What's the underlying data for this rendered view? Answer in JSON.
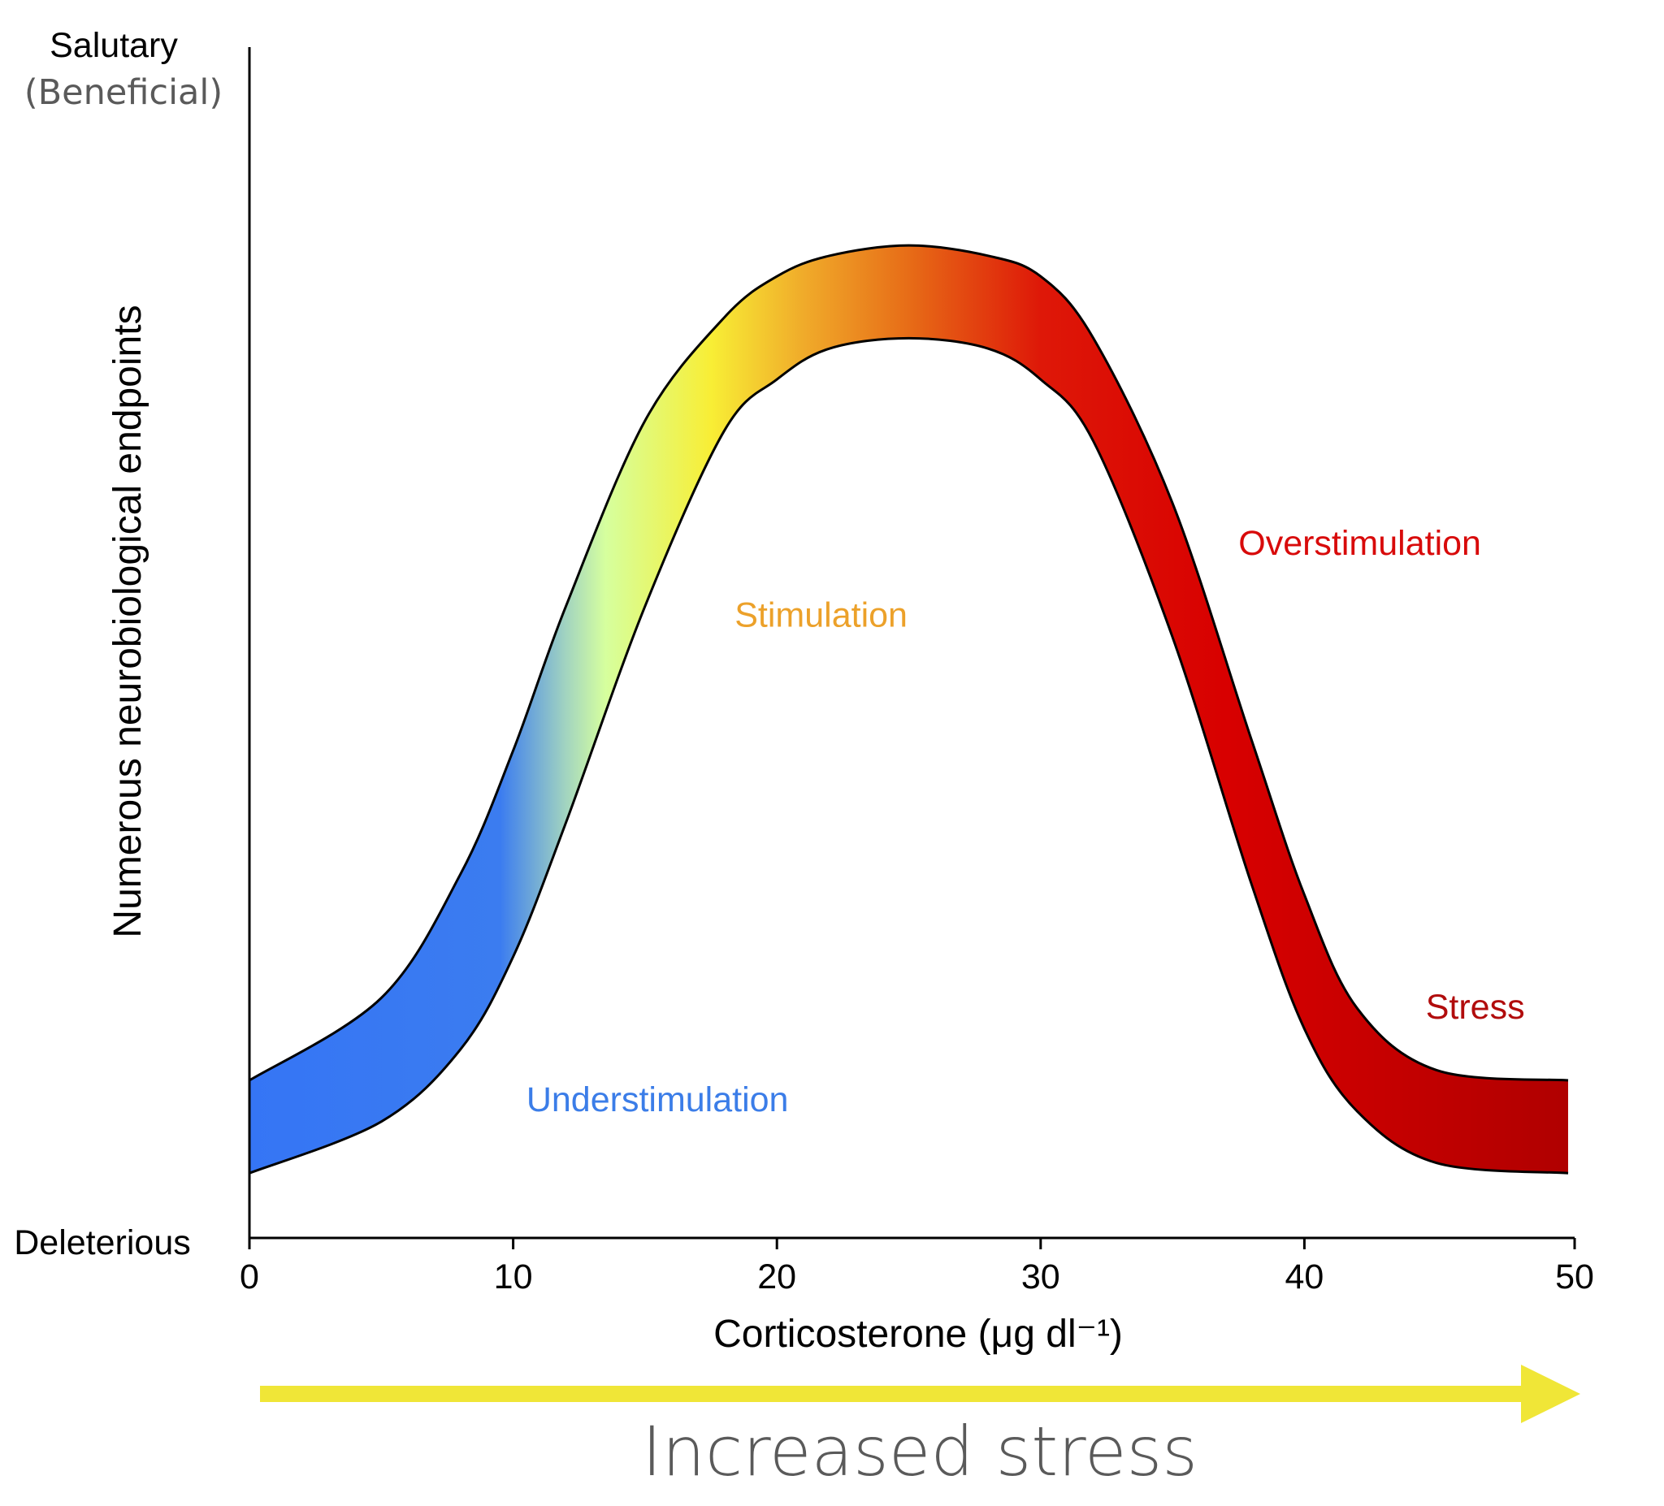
{
  "chart_data": {
    "type": "area",
    "title": "",
    "xlabel": "Corticosterone (μg dl⁻¹)",
    "xlim": [
      0,
      50
    ],
    "x_ticks": [
      0,
      10,
      20,
      30,
      40,
      50
    ],
    "y_axis": {
      "label": "Numerous neurobiological endpoints",
      "top_label": "Salutary",
      "top_sublabel": "(Beneficial)",
      "bottom_label": "Deleterious",
      "ticks_shown": false
    },
    "band": {
      "x": [
        0,
        5,
        8,
        10,
        12,
        15,
        18,
        20,
        22,
        25,
        28,
        30,
        32,
        35,
        38,
        40,
        42,
        45,
        50
      ],
      "upper": [
        0.13,
        0.21,
        0.33,
        0.45,
        0.59,
        0.77,
        0.87,
        0.91,
        0.93,
        0.94,
        0.93,
        0.91,
        0.85,
        0.69,
        0.46,
        0.31,
        0.2,
        0.14,
        0.13
      ],
      "lower": [
        0.04,
        0.09,
        0.16,
        0.25,
        0.38,
        0.59,
        0.76,
        0.81,
        0.84,
        0.85,
        0.84,
        0.81,
        0.75,
        0.56,
        0.32,
        0.18,
        0.1,
        0.05,
        0.04
      ],
      "gradient_stops": [
        {
          "x": 0,
          "color": "#3575f5"
        },
        {
          "x": 9.5,
          "color": "#3b7cf0"
        },
        {
          "x": 12,
          "color": "#a2d4c0"
        },
        {
          "x": 13.5,
          "color": "#d6ff9e"
        },
        {
          "x": 17.5,
          "color": "#f8ee35"
        },
        {
          "x": 21,
          "color": "#f0ab2a"
        },
        {
          "x": 25,
          "color": "#e76c17"
        },
        {
          "x": 30,
          "color": "#de1808"
        },
        {
          "x": 37,
          "color": "#d80000"
        },
        {
          "x": 50,
          "color": "#b00000"
        }
      ]
    },
    "annotations": [
      {
        "text": "Understimulation",
        "x": 10.5,
        "y": 0.1,
        "color": "#3b7de8"
      },
      {
        "text": "Stimulation",
        "x": 18.4,
        "y": 0.57,
        "color": "#eca12a"
      },
      {
        "text": "Overstimulation",
        "x": 37.5,
        "y": 0.64,
        "color": "#d80a0a"
      },
      {
        "text": "Stress",
        "x": 44.6,
        "y": 0.19,
        "color": "#b10c0c"
      }
    ],
    "arrow": {
      "label": "Increased stress",
      "color": "#f0e637"
    },
    "grid": false,
    "legend": "none"
  }
}
